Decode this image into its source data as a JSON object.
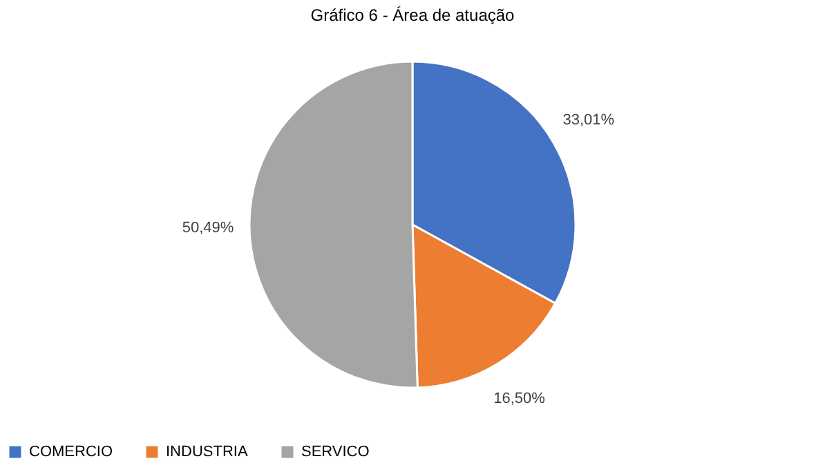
{
  "chart_data": {
    "type": "pie",
    "title": "Gráfico 6 - Área de atuação",
    "categories": [
      "COMERCIO",
      "INDUSTRIA",
      "SERVICO"
    ],
    "values": [
      33.01,
      16.5,
      50.49
    ],
    "colors": [
      "#4472c4",
      "#ed7d31",
      "#a5a5a5"
    ],
    "value_labels": [
      "33,01%",
      "16,50%",
      "50,49%"
    ],
    "legend": "bottom"
  }
}
